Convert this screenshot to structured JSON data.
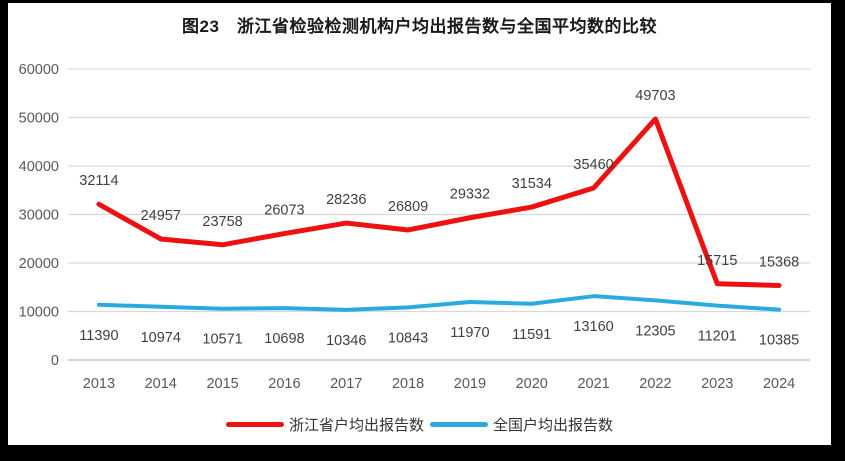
{
  "title": "图23　浙江省检验检测机构户均出报告数与全国平均数的比较",
  "chart_data": {
    "type": "line",
    "title": "图23　浙江省检验检测机构户均出报告数与全国平均数的比较",
    "categories": [
      "2013",
      "2014",
      "2015",
      "2016",
      "2017",
      "2018",
      "2019",
      "2020",
      "2021",
      "2022",
      "2023",
      "2024"
    ],
    "series": [
      {
        "name": "浙江省户均出报告数",
        "color": "#EE1111",
        "values": [
          32114,
          24957,
          23758,
          26073,
          28236,
          26809,
          29332,
          31534,
          35460,
          49703,
          15715,
          15368
        ]
      },
      {
        "name": "全国户均出报告数",
        "color": "#29ABDF",
        "values": [
          11390,
          10974,
          10571,
          10698,
          10346,
          10843,
          11970,
          11591,
          13160,
          12305,
          11201,
          10385
        ]
      }
    ],
    "xlabel": "",
    "ylabel": "",
    "ylim": [
      0,
      60000
    ],
    "ytick_step": 10000,
    "yticks": [
      "0",
      "10000",
      "20000",
      "30000",
      "40000",
      "50000",
      "60000"
    ],
    "grid": true,
    "data_labels": true,
    "legend_position": "bottom",
    "gridline_color": "#D9D9D9",
    "axis_line_color": "#BFBFBF",
    "tick_label_color": "#595959",
    "data_label_color": "#404040"
  }
}
